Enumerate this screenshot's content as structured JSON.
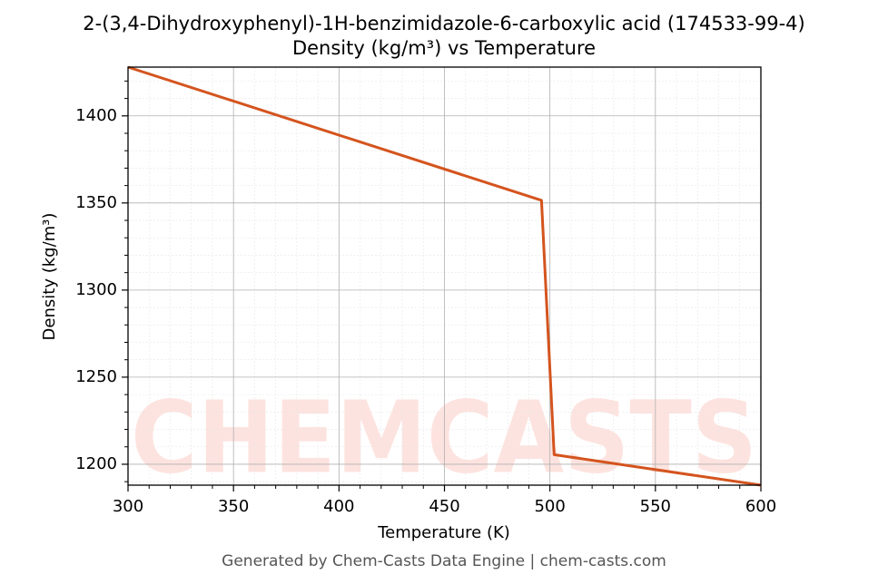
{
  "chart_data": {
    "type": "line",
    "title": "2-(3,4-Dihydroxyphenyl)-1H-benzimidazole-6-carboxylic acid (174533-99-4)",
    "subtitle": "Density (kg/m³) vs Temperature",
    "x_label": "Temperature (K)",
    "y_label": "Density (kg/m³)",
    "footer": "Generated by Chem-Casts Data Engine | chem-casts.com",
    "watermark": "CHEMCASTS",
    "x": [
      300,
      496,
      502,
      600
    ],
    "series": [
      {
        "name": "Density",
        "color": "#d4541e",
        "values": [
          1428,
          1351.5,
          1205.5,
          1188
        ]
      }
    ],
    "xlim": [
      300,
      600
    ],
    "ylim": [
      1188,
      1428
    ],
    "xticks": [
      300,
      350,
      400,
      450,
      500,
      550,
      600
    ],
    "yticks": [
      1200,
      1250,
      1300,
      1350,
      1400
    ],
    "x_minor_ticks": [
      310,
      320,
      330,
      340,
      360,
      370,
      380,
      390,
      410,
      420,
      430,
      440,
      460,
      470,
      480,
      490,
      510,
      520,
      530,
      540,
      560,
      570,
      580,
      590
    ],
    "y_minor_ticks": [
      1190,
      1210,
      1220,
      1230,
      1240,
      1260,
      1270,
      1280,
      1290,
      1310,
      1320,
      1330,
      1340,
      1360,
      1370,
      1380,
      1390,
      1410,
      1420
    ],
    "grid": true,
    "minor_grid": true
  }
}
